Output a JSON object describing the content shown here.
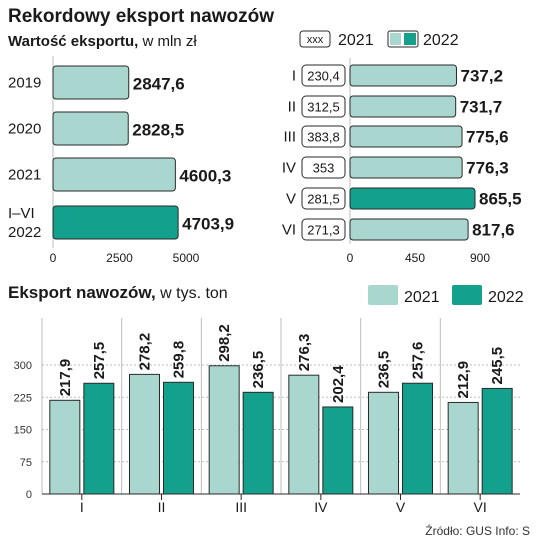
{
  "title": "Rekordowy eksport nawozów",
  "colors": {
    "c2021": "#a9d7d0",
    "c2022": "#13a08c",
    "outline": "#2a2a2a",
    "grid": "#bdbdbd"
  },
  "legend_top": {
    "box_label": "xxx",
    "item1": "2021",
    "item2": "2022"
  },
  "legend_bottom": {
    "item1": "2021",
    "item2": "2022"
  },
  "source": "Źródło: GUS  Info: S",
  "chart_data": [
    {
      "type": "bar",
      "subtitle_bold": "Wartość eksportu,",
      "subtitle_normal": " w mln zł",
      "categories": [
        "2019",
        "2020",
        "2021",
        "I–VI\n2022"
      ],
      "category_lines": [
        [
          "2019"
        ],
        [
          "2020"
        ],
        [
          "2021"
        ],
        [
          "I–VI",
          "2022"
        ]
      ],
      "values": [
        2847.6,
        2828.5,
        4600.3,
        4703.9
      ],
      "labels": [
        "2847,6",
        "2828,5",
        "4600,3",
        "4703,9"
      ],
      "highlight": [
        false,
        false,
        false,
        true
      ],
      "xlim": [
        0,
        5000
      ],
      "ticks": [
        "0",
        "2500",
        "5000"
      ],
      "tick_values": [
        0,
        2500,
        5000
      ]
    },
    {
      "type": "bar",
      "categories": [
        "I",
        "II",
        "III",
        "IV",
        "V",
        "VI"
      ],
      "values_2021": [
        230.4,
        312.5,
        383.8,
        353,
        281.5,
        271.3
      ],
      "labels_2021": [
        "230,4",
        "312,5",
        "383,8",
        "353",
        "281,5",
        "271,3"
      ],
      "values_2022": [
        737.2,
        731.7,
        775.6,
        776.3,
        865.5,
        817.6
      ],
      "labels_2022": [
        "737,2",
        "731,7",
        "775,6",
        "776,3",
        "865,5",
        "817,6"
      ],
      "highlight": [
        false,
        false,
        false,
        false,
        true,
        false
      ],
      "xlim": [
        0,
        900
      ],
      "ticks": [
        "0",
        "450",
        "900"
      ],
      "tick_values": [
        0,
        450,
        900
      ]
    },
    {
      "type": "bar",
      "subtitle_bold": "Eksport nawozów,",
      "subtitle_normal": " w tys. ton",
      "categories": [
        "I",
        "II",
        "III",
        "IV",
        "V",
        "VI"
      ],
      "series": [
        {
          "name": "2021",
          "values": [
            217.9,
            278.2,
            298.2,
            276.3,
            236.5,
            212.9
          ],
          "labels": [
            "217,9",
            "278,2",
            "298,2",
            "276,3",
            "236,5",
            "212,9"
          ]
        },
        {
          "name": "2022",
          "values": [
            257.5,
            259.8,
            236.5,
            202.4,
            257.6,
            245.5
          ],
          "labels": [
            "257,5",
            "259,8",
            "236,5",
            "202,4",
            "257,6",
            "245,5"
          ]
        }
      ],
      "ylim": [
        0,
        300
      ],
      "ticks": [
        "0",
        "75",
        "150",
        "225",
        "300"
      ],
      "tick_values": [
        0,
        75,
        150,
        225,
        300
      ],
      "grid": true
    }
  ]
}
